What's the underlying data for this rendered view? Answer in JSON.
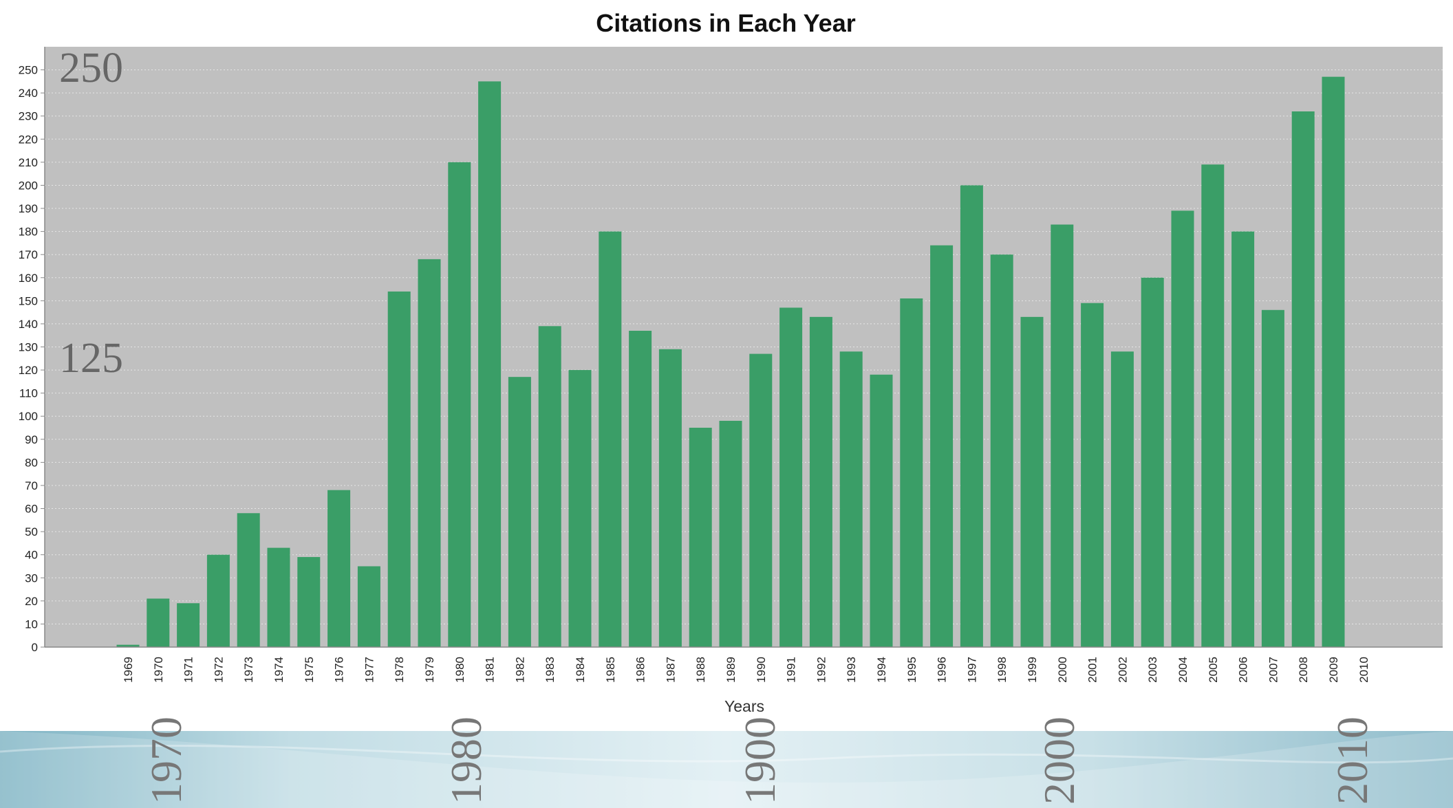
{
  "chart_data": {
    "type": "bar",
    "title": "Citations in Each Year",
    "xlabel": "Years",
    "ylabel": "",
    "ylim": [
      0,
      260
    ],
    "yticks": [
      0,
      10,
      20,
      30,
      40,
      50,
      60,
      70,
      80,
      90,
      100,
      110,
      120,
      130,
      140,
      150,
      160,
      170,
      180,
      190,
      200,
      210,
      220,
      230,
      240,
      250
    ],
    "grid": true,
    "bar_color": "#3a9e67",
    "plot_background": "#c0c0c0",
    "categories": [
      "1969",
      "1970",
      "1971",
      "1972",
      "1973",
      "1974",
      "1975",
      "1976",
      "1977",
      "1978",
      "1979",
      "1980",
      "1981",
      "1982",
      "1983",
      "1984",
      "1985",
      "1986",
      "1987",
      "1988",
      "1989",
      "1990",
      "1991",
      "1992",
      "1993",
      "1994",
      "1995",
      "1996",
      "1997",
      "1998",
      "1999",
      "2000",
      "2001",
      "2002",
      "2003",
      "2004",
      "2005",
      "2006",
      "2007",
      "2008",
      "2009",
      "2010"
    ],
    "values": [
      1,
      21,
      19,
      40,
      58,
      43,
      39,
      68,
      35,
      154,
      168,
      210,
      245,
      117,
      139,
      120,
      180,
      137,
      129,
      95,
      98,
      127,
      147,
      143,
      128,
      118,
      151,
      174,
      200,
      170,
      143,
      183,
      149,
      128,
      160,
      189,
      209,
      180,
      146,
      232,
      247,
      0
    ]
  },
  "overlay": {
    "y_labels": [
      "250",
      "125"
    ],
    "year_labels": [
      "1970",
      "1980",
      "1900",
      "2000",
      "2010"
    ]
  }
}
